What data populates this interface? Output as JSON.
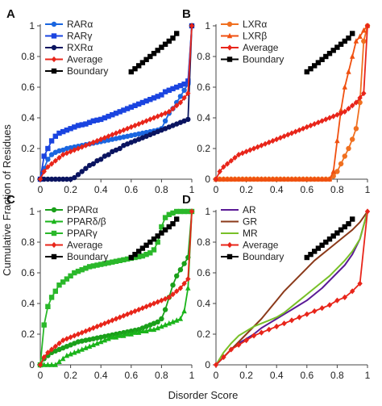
{
  "ylabel": "Cumulative Fraction of Residues",
  "xlabel": "Disorder Score",
  "chart_data": [
    {
      "panel": "A",
      "type": "line",
      "xlim": [
        0,
        1
      ],
      "ylim": [
        0,
        1
      ],
      "xticks": [
        "0",
        "0.2",
        "0.4",
        "0.6",
        "0.8",
        "1"
      ],
      "yticks": [
        "0",
        "0.2",
        "0.4",
        "0.6",
        "0.8",
        "1"
      ],
      "grid": false,
      "legend": "top-left",
      "x": [
        0,
        0.025,
        0.05,
        0.075,
        0.1,
        0.125,
        0.15,
        0.175,
        0.2,
        0.225,
        0.25,
        0.275,
        0.3,
        0.325,
        0.35,
        0.375,
        0.4,
        0.425,
        0.45,
        0.475,
        0.5,
        0.525,
        0.55,
        0.575,
        0.6,
        0.625,
        0.65,
        0.675,
        0.7,
        0.725,
        0.75,
        0.775,
        0.8,
        0.825,
        0.85,
        0.875,
        0.9,
        0.925,
        0.95,
        0.975,
        1
      ],
      "series": [
        {
          "name": "RARα",
          "color": "#1a66e0",
          "marker": "circle",
          "values": [
            0,
            0.07,
            0.13,
            0.16,
            0.175,
            0.185,
            0.19,
            0.2,
            0.205,
            0.21,
            0.215,
            0.22,
            0.225,
            0.23,
            0.235,
            0.24,
            0.245,
            0.25,
            0.255,
            0.26,
            0.265,
            0.27,
            0.275,
            0.28,
            0.285,
            0.29,
            0.295,
            0.3,
            0.305,
            0.31,
            0.315,
            0.32,
            0.33,
            0.38,
            0.43,
            0.46,
            0.5,
            0.54,
            0.58,
            0.62,
            1
          ]
        },
        {
          "name": "RARγ",
          "color": "#1a44e0",
          "marker": "square",
          "values": [
            0,
            0.15,
            0.2,
            0.25,
            0.28,
            0.3,
            0.31,
            0.32,
            0.33,
            0.34,
            0.35,
            0.355,
            0.36,
            0.37,
            0.38,
            0.385,
            0.39,
            0.4,
            0.41,
            0.42,
            0.43,
            0.44,
            0.45,
            0.46,
            0.47,
            0.48,
            0.49,
            0.5,
            0.51,
            0.52,
            0.53,
            0.54,
            0.55,
            0.57,
            0.58,
            0.59,
            0.6,
            0.61,
            0.62,
            0.64,
            1
          ]
        },
        {
          "name": "RXRα",
          "color": "#0a1460",
          "marker": "circle",
          "values": [
            0,
            0,
            0,
            0,
            0,
            0,
            0,
            0,
            0,
            0.01,
            0.03,
            0.05,
            0.07,
            0.09,
            0.1,
            0.12,
            0.13,
            0.15,
            0.16,
            0.18,
            0.19,
            0.2,
            0.22,
            0.23,
            0.24,
            0.25,
            0.26,
            0.27,
            0.28,
            0.29,
            0.3,
            0.31,
            0.32,
            0.33,
            0.34,
            0.35,
            0.36,
            0.37,
            0.38,
            0.39,
            1
          ]
        },
        {
          "name": "Average",
          "color": "#e8251a",
          "marker": "diamond",
          "values": [
            0,
            0.05,
            0.08,
            0.1,
            0.12,
            0.14,
            0.16,
            0.17,
            0.18,
            0.19,
            0.2,
            0.21,
            0.22,
            0.23,
            0.24,
            0.25,
            0.26,
            0.27,
            0.28,
            0.29,
            0.3,
            0.31,
            0.32,
            0.33,
            0.34,
            0.35,
            0.36,
            0.37,
            0.38,
            0.39,
            0.4,
            0.41,
            0.42,
            0.43,
            0.44,
            0.46,
            0.48,
            0.5,
            0.53,
            0.56,
            1
          ]
        },
        {
          "name": "Boundary",
          "color": "#000000",
          "marker": "square",
          "x": [
            0.6,
            0.625,
            0.65,
            0.675,
            0.7,
            0.725,
            0.75,
            0.775,
            0.8,
            0.825,
            0.85,
            0.875,
            0.9
          ],
          "values": [
            0.7,
            0.72,
            0.74,
            0.76,
            0.78,
            0.8,
            0.82,
            0.84,
            0.86,
            0.88,
            0.9,
            0.92,
            0.95
          ]
        }
      ]
    },
    {
      "panel": "B",
      "type": "line",
      "xlim": [
        0,
        1
      ],
      "ylim": [
        0,
        1
      ],
      "xticks": [
        "0",
        "0.2",
        "0.4",
        "0.6",
        "0.8",
        "1"
      ],
      "yticks": [
        "0",
        "0.2",
        "0.4",
        "0.6",
        "0.8",
        "1"
      ],
      "grid": false,
      "legend": "top-left",
      "x": [
        0,
        0.025,
        0.05,
        0.075,
        0.1,
        0.125,
        0.15,
        0.175,
        0.2,
        0.225,
        0.25,
        0.275,
        0.3,
        0.325,
        0.35,
        0.375,
        0.4,
        0.425,
        0.45,
        0.475,
        0.5,
        0.525,
        0.55,
        0.575,
        0.6,
        0.625,
        0.65,
        0.675,
        0.7,
        0.725,
        0.75,
        0.775,
        0.8,
        0.825,
        0.85,
        0.875,
        0.9,
        0.925,
        0.95,
        0.975,
        1
      ],
      "series": [
        {
          "name": "LXRα",
          "color": "#f07020",
          "marker": "circle",
          "values": [
            0,
            0,
            0,
            0,
            0,
            0,
            0,
            0,
            0,
            0,
            0,
            0,
            0,
            0,
            0,
            0,
            0,
            0,
            0,
            0,
            0,
            0,
            0,
            0,
            0,
            0,
            0,
            0,
            0,
            0,
            0,
            0.02,
            0.05,
            0.1,
            0.15,
            0.2,
            0.26,
            0.33,
            0.5,
            0.9,
            1
          ]
        },
        {
          "name": "LXRβ",
          "color": "#f05010",
          "marker": "triangle",
          "values": [
            0,
            0,
            0,
            0,
            0,
            0,
            0,
            0,
            0,
            0,
            0,
            0,
            0,
            0,
            0,
            0,
            0,
            0,
            0,
            0,
            0,
            0,
            0,
            0,
            0,
            0,
            0,
            0,
            0,
            0,
            0,
            0.05,
            0.25,
            0.45,
            0.6,
            0.7,
            0.8,
            0.9,
            0.93,
            0.97,
            1
          ]
        },
        {
          "name": "Average",
          "color": "#e8251a",
          "marker": "diamond",
          "values": [
            0,
            0.05,
            0.08,
            0.1,
            0.12,
            0.14,
            0.16,
            0.17,
            0.18,
            0.19,
            0.2,
            0.21,
            0.22,
            0.23,
            0.24,
            0.25,
            0.26,
            0.27,
            0.28,
            0.29,
            0.3,
            0.31,
            0.32,
            0.33,
            0.34,
            0.35,
            0.36,
            0.37,
            0.38,
            0.39,
            0.4,
            0.41,
            0.42,
            0.43,
            0.44,
            0.46,
            0.48,
            0.5,
            0.53,
            0.56,
            1
          ]
        },
        {
          "name": "Boundary",
          "color": "#000000",
          "marker": "square",
          "x": [
            0.6,
            0.625,
            0.65,
            0.675,
            0.7,
            0.725,
            0.75,
            0.775,
            0.8,
            0.825,
            0.85,
            0.875,
            0.9
          ],
          "values": [
            0.7,
            0.72,
            0.74,
            0.76,
            0.78,
            0.8,
            0.82,
            0.84,
            0.86,
            0.88,
            0.9,
            0.92,
            0.95
          ]
        }
      ]
    },
    {
      "panel": "C",
      "type": "line",
      "xlim": [
        0,
        1
      ],
      "ylim": [
        0,
        1
      ],
      "xticks": [
        "0",
        "0.2",
        "0.4",
        "0.6",
        "0.8",
        "1"
      ],
      "yticks": [
        "0",
        "0.2",
        "0.4",
        "0.6",
        "0.8",
        "1"
      ],
      "grid": false,
      "legend": "top-left",
      "x": [
        0,
        0.025,
        0.05,
        0.075,
        0.1,
        0.125,
        0.15,
        0.175,
        0.2,
        0.225,
        0.25,
        0.275,
        0.3,
        0.325,
        0.35,
        0.375,
        0.4,
        0.425,
        0.45,
        0.475,
        0.5,
        0.525,
        0.55,
        0.575,
        0.6,
        0.625,
        0.65,
        0.675,
        0.7,
        0.725,
        0.75,
        0.775,
        0.8,
        0.825,
        0.85,
        0.875,
        0.9,
        0.925,
        0.95,
        0.975,
        1
      ],
      "series": [
        {
          "name": "PPARα",
          "color": "#1aa01a",
          "marker": "circle",
          "values": [
            0,
            0.04,
            0.06,
            0.08,
            0.09,
            0.1,
            0.11,
            0.12,
            0.13,
            0.14,
            0.15,
            0.155,
            0.16,
            0.165,
            0.17,
            0.175,
            0.18,
            0.185,
            0.19,
            0.195,
            0.2,
            0.205,
            0.21,
            0.215,
            0.22,
            0.225,
            0.23,
            0.24,
            0.25,
            0.26,
            0.27,
            0.28,
            0.3,
            0.36,
            0.44,
            0.52,
            0.58,
            0.62,
            0.66,
            0.7,
            1
          ]
        },
        {
          "name": "PPARδ/β",
          "color": "#1ab41a",
          "marker": "triangle",
          "values": [
            0,
            0,
            0,
            0,
            0,
            0.02,
            0.04,
            0.06,
            0.07,
            0.08,
            0.09,
            0.1,
            0.11,
            0.12,
            0.13,
            0.14,
            0.15,
            0.16,
            0.17,
            0.18,
            0.18,
            0.19,
            0.19,
            0.2,
            0.2,
            0.21,
            0.21,
            0.22,
            0.22,
            0.23,
            0.23,
            0.24,
            0.25,
            0.26,
            0.27,
            0.28,
            0.29,
            0.3,
            0.35,
            0.5,
            1
          ]
        },
        {
          "name": "PPARγ",
          "color": "#2ab82a",
          "marker": "square",
          "values": [
            0,
            0.26,
            0.38,
            0.44,
            0.48,
            0.52,
            0.54,
            0.56,
            0.58,
            0.6,
            0.61,
            0.62,
            0.63,
            0.64,
            0.645,
            0.65,
            0.655,
            0.66,
            0.665,
            0.67,
            0.675,
            0.68,
            0.685,
            0.69,
            0.695,
            0.7,
            0.705,
            0.71,
            0.72,
            0.73,
            0.75,
            0.8,
            0.9,
            0.96,
            0.98,
            0.99,
            1,
            1,
            1,
            1,
            1
          ]
        },
        {
          "name": "Average",
          "color": "#e8251a",
          "marker": "diamond",
          "values": [
            0,
            0.05,
            0.08,
            0.1,
            0.12,
            0.14,
            0.16,
            0.17,
            0.18,
            0.19,
            0.2,
            0.21,
            0.22,
            0.23,
            0.24,
            0.25,
            0.26,
            0.27,
            0.28,
            0.29,
            0.3,
            0.31,
            0.32,
            0.33,
            0.34,
            0.35,
            0.36,
            0.37,
            0.38,
            0.39,
            0.4,
            0.41,
            0.42,
            0.43,
            0.44,
            0.46,
            0.48,
            0.5,
            0.53,
            0.56,
            1
          ]
        },
        {
          "name": "Boundary",
          "color": "#000000",
          "marker": "square",
          "x": [
            0.6,
            0.625,
            0.65,
            0.675,
            0.7,
            0.725,
            0.75,
            0.775,
            0.8,
            0.825,
            0.85,
            0.875,
            0.9
          ],
          "values": [
            0.7,
            0.72,
            0.74,
            0.76,
            0.78,
            0.8,
            0.82,
            0.84,
            0.86,
            0.88,
            0.9,
            0.92,
            0.95
          ]
        }
      ]
    },
    {
      "panel": "D",
      "type": "line",
      "xlim": [
        0,
        1
      ],
      "ylim": [
        0,
        1
      ],
      "xticks": [
        "0",
        "0.2",
        "0.4",
        "0.6",
        "0.8",
        "1"
      ],
      "yticks": [
        "0",
        "0.2",
        "0.4",
        "0.6",
        "0.8",
        "1"
      ],
      "grid": false,
      "legend": "top-left",
      "x": [
        0,
        0.05,
        0.1,
        0.15,
        0.2,
        0.25,
        0.3,
        0.35,
        0.4,
        0.45,
        0.5,
        0.55,
        0.6,
        0.65,
        0.7,
        0.75,
        0.8,
        0.85,
        0.9,
        0.95,
        1
      ],
      "series": [
        {
          "name": "AR",
          "color": "#5a1a96",
          "marker": "none",
          "values": [
            0,
            0.05,
            0.1,
            0.14,
            0.17,
            0.2,
            0.24,
            0.27,
            0.3,
            0.33,
            0.36,
            0.39,
            0.42,
            0.46,
            0.5,
            0.55,
            0.6,
            0.65,
            0.72,
            0.82,
            1
          ]
        },
        {
          "name": "GR",
          "color": "#8b3a1a",
          "marker": "none",
          "values": [
            0,
            0.05,
            0.1,
            0.15,
            0.2,
            0.25,
            0.3,
            0.36,
            0.42,
            0.48,
            0.53,
            0.58,
            0.63,
            0.68,
            0.72,
            0.76,
            0.8,
            0.84,
            0.88,
            0.93,
            1
          ]
        },
        {
          "name": "MR",
          "color": "#78c028",
          "marker": "none",
          "values": [
            0,
            0.08,
            0.14,
            0.19,
            0.22,
            0.25,
            0.27,
            0.29,
            0.31,
            0.34,
            0.38,
            0.42,
            0.46,
            0.5,
            0.54,
            0.58,
            0.63,
            0.68,
            0.74,
            0.82,
            1
          ]
        },
        {
          "name": "Average",
          "color": "#e8251a",
          "marker": "diamond",
          "values": [
            0,
            0.05,
            0.1,
            0.13,
            0.16,
            0.19,
            0.21,
            0.23,
            0.25,
            0.27,
            0.29,
            0.31,
            0.33,
            0.35,
            0.37,
            0.39,
            0.42,
            0.44,
            0.48,
            0.53,
            1
          ]
        },
        {
          "name": "Boundary",
          "color": "#000000",
          "marker": "square",
          "x": [
            0.6,
            0.625,
            0.65,
            0.675,
            0.7,
            0.725,
            0.75,
            0.775,
            0.8,
            0.825,
            0.85,
            0.875,
            0.9
          ],
          "values": [
            0.7,
            0.72,
            0.74,
            0.76,
            0.78,
            0.8,
            0.82,
            0.84,
            0.86,
            0.88,
            0.9,
            0.92,
            0.95
          ]
        }
      ]
    }
  ]
}
